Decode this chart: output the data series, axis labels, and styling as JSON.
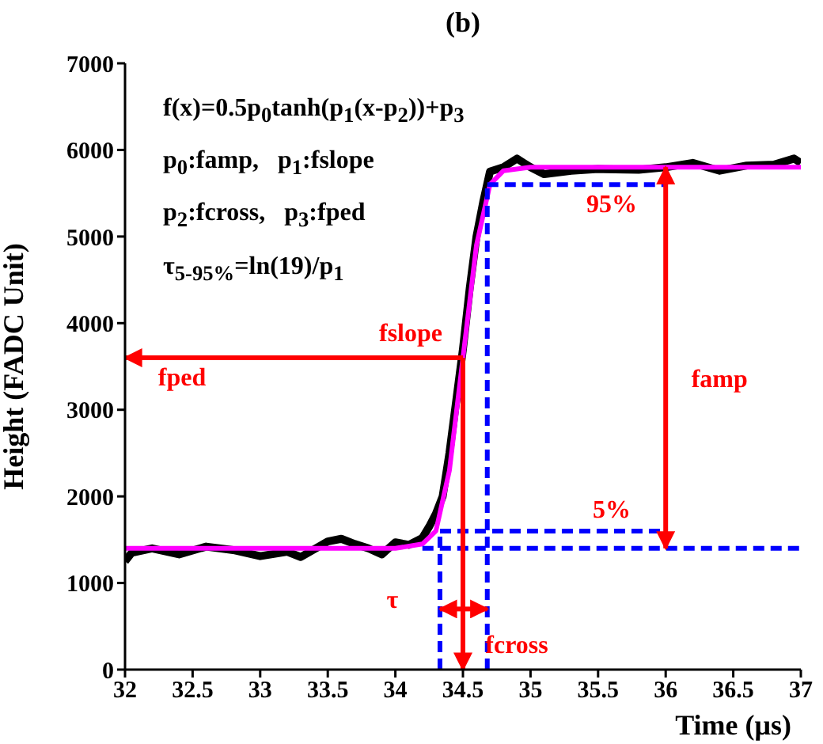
{
  "chart_data": {
    "type": "line",
    "title": "(b)",
    "xlabel": "Time (μs)",
    "ylabel": "Height (FADC Unit)",
    "xlim": [
      32,
      37
    ],
    "xticks": [
      32,
      32.5,
      33,
      33.5,
      34,
      34.5,
      35,
      35.5,
      36,
      36.5,
      37
    ],
    "ylim": [
      0,
      7000
    ],
    "yticks": [
      0,
      1000,
      2000,
      3000,
      4000,
      5000,
      6000,
      7000
    ],
    "line_style": "solid",
    "series": [
      {
        "color": "#000000",
        "x": [
          32,
          32.05,
          32.2,
          32.4,
          32.6,
          32.8,
          33,
          33.2,
          33.3,
          33.5,
          33.6,
          33.7,
          33.8,
          33.9,
          34,
          34.1,
          34.2,
          34.25,
          34.3,
          34.35,
          34.4,
          34.45,
          34.5,
          34.55,
          34.6,
          34.65,
          34.7,
          34.8,
          34.9,
          34.95,
          35,
          35.1,
          35.3,
          35.5,
          35.8,
          36,
          36.2,
          36.4,
          36.6,
          36.8,
          36.95,
          37
        ],
        "values": [
          1250,
          1350,
          1400,
          1330,
          1420,
          1380,
          1310,
          1360,
          1300,
          1480,
          1510,
          1450,
          1400,
          1330,
          1470,
          1440,
          1520,
          1650,
          1800,
          2000,
          2500,
          3100,
          3700,
          4400,
          5000,
          5400,
          5750,
          5800,
          5900,
          5850,
          5800,
          5720,
          5760,
          5780,
          5770,
          5800,
          5850,
          5760,
          5820,
          5830,
          5900,
          5850
        ]
      },
      {
        "color": "#ff00ff",
        "x": [
          32,
          34,
          34.2,
          34.3,
          34.4,
          34.5,
          34.6,
          34.7,
          34.8,
          35,
          37
        ],
        "values": [
          1400,
          1400,
          1450,
          1600,
          2300,
          3600,
          4900,
          5600,
          5760,
          5800,
          5800
        ]
      },
      {
        "color": "#0000ff",
        "line_style": "dashed",
        "x": [
          34.2,
          37
        ],
        "values": [
          1400,
          1400
        ]
      },
      {
        "color": "#0000ff",
        "line_style": "dashed",
        "x": [
          34.33,
          36
        ],
        "values": [
          1600,
          1600
        ]
      },
      {
        "color": "#0000ff",
        "line_style": "dashed",
        "x": [
          34.68,
          36
        ],
        "values": [
          5600,
          5600
        ]
      },
      {
        "color": "#0000ff",
        "line_style": "dashed",
        "x": [
          34.33,
          34.33
        ],
        "values": [
          0,
          1600
        ]
      },
      {
        "color": "#0000ff",
        "line_style": "dashed",
        "x": [
          34.68,
          34.68
        ],
        "values": [
          0,
          5600
        ]
      },
      {
        "color": "#ff0000",
        "x": [
          34.5,
          32
        ],
        "values": [
          3600,
          3600
        ]
      },
      {
        "color": "#ff0000",
        "x": [
          34.5,
          34.5
        ],
        "values": [
          3600,
          0
        ]
      },
      {
        "color": "#ff0000",
        "x": [
          36,
          36
        ],
        "values": [
          3600,
          5800
        ]
      },
      {
        "color": "#ff0000",
        "x": [
          36,
          36
        ],
        "values": [
          3600,
          1400
        ]
      },
      {
        "color": "#ff0000",
        "x": [
          34.5,
          34.33
        ],
        "values": [
          700,
          700
        ]
      },
      {
        "color": "#ff0000",
        "x": [
          34.5,
          34.68
        ],
        "values": [
          700,
          700
        ]
      }
    ],
    "annotations": [
      "f(x)=0.5p$_{0}$tanh(p$_{1}$(x-p$_{2}$))+p$_{3}$",
      "p$_{0}$:famp,   p$_{1}$:fslope",
      "p$_{2}$:fcross,   p$_{3}$:fped",
      "τ$_{5-95%}$=ln(19)/p$_{1}$",
      {
        "text": "fslope",
        "x": 34.5,
        "y": 3600
      },
      {
        "text": "fped",
        "x": 32,
        "y": 3600
      },
      {
        "text": "famp",
        "x": 36,
        "y": 3600
      },
      {
        "text": "95%",
        "x": 35.6,
        "y": 5600
      },
      {
        "text": "5%",
        "x": 35.6,
        "y": 1600
      },
      {
        "text": "τ",
        "x": 34.33,
        "y": 700
      },
      {
        "text": "fcross",
        "x": 34.5,
        "y": 0
      }
    ]
  }
}
